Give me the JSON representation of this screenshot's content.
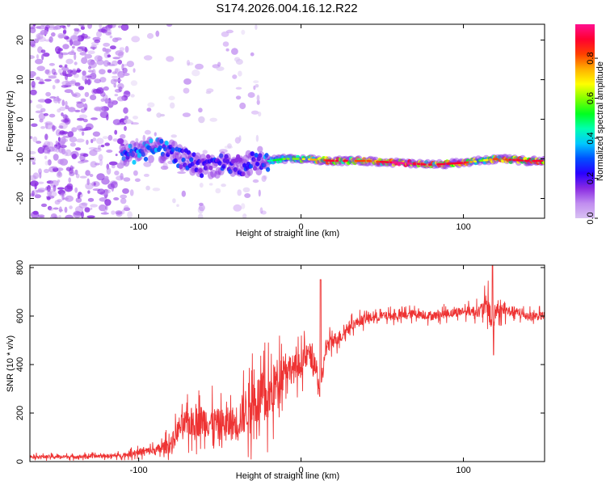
{
  "title": "S174.2026.004.16.12.R22",
  "chart_data": [
    {
      "type": "heatmap",
      "name": "spectrogram",
      "xlabel": "Height of straight line (km)",
      "ylabel": "Frequency (Hz)",
      "xlim": [
        -167,
        150
      ],
      "ylim": [
        -25,
        24
      ],
      "xticks": [
        -100,
        0,
        100
      ],
      "yticks": [
        -20,
        -10,
        0,
        10,
        20
      ],
      "colorbar": {
        "label": "Normalized spectral amplitude",
        "range": [
          0,
          0.97
        ],
        "ticks": [
          0.0,
          0.2,
          0.4,
          0.6,
          0.8
        ],
        "colormap": [
          "#d9c2f2",
          "#c08cf0",
          "#8a2be2",
          "#2a00ff",
          "#0050ff",
          "#00c8ff",
          "#00ffb0",
          "#00ff20",
          "#80ff00",
          "#ffff00",
          "#ffb000",
          "#ff4000",
          "#ff0030",
          "#ff1090"
        ]
      },
      "signal_track": {
        "height_km": [
          -110,
          -100,
          -90,
          -80,
          -70,
          -60,
          -50,
          -40,
          -30,
          -20,
          -10,
          0,
          20,
          40,
          60,
          80,
          100,
          110,
          120,
          140,
          150
        ],
        "frequency_hz": [
          -9.5,
          -8.0,
          -7.5,
          -8.5,
          -10.5,
          -12.0,
          -11.5,
          -12.0,
          -11.0,
          -10.5,
          -10.0,
          -10.0,
          -10.5,
          -10.5,
          -11.0,
          -11.5,
          -11.0,
          -10.5,
          -10.0,
          -10.5,
          -10.5
        ],
        "amplitude": [
          0.35,
          0.4,
          0.4,
          0.3,
          0.3,
          0.25,
          0.3,
          0.25,
          0.25,
          0.35,
          0.5,
          0.55,
          0.85,
          0.7,
          0.9,
          0.8,
          0.85,
          0.5,
          0.75,
          0.85,
          0.85
        ]
      },
      "noise_regions": [
        {
          "height_km": [
            -167,
            -107
          ],
          "frequency_hz": [
            -25,
            24
          ],
          "amplitude": 0.12
        },
        {
          "height_km": [
            -107,
            -20
          ],
          "frequency_hz": [
            -25,
            24
          ],
          "amplitude": 0.05
        }
      ]
    },
    {
      "type": "line",
      "name": "snr",
      "color": "#ee3333",
      "xlabel": "Height of straight line (km)",
      "ylabel": "SNR (10 * v/v)",
      "xlim": [
        -167,
        150
      ],
      "ylim": [
        0,
        810
      ],
      "xticks": [
        -100,
        0,
        100
      ],
      "yticks": [
        0,
        200,
        400,
        600,
        800
      ],
      "x": [
        -167,
        -140,
        -110,
        -100,
        -90,
        -80,
        -75,
        -70,
        -60,
        -50,
        -40,
        -30,
        -20,
        -15,
        -10,
        -5,
        0,
        5,
        10,
        12,
        15,
        20,
        25,
        30,
        40,
        50,
        60,
        70,
        80,
        90,
        100,
        110,
        115,
        118,
        120,
        130,
        140,
        150
      ],
      "y": [
        20,
        20,
        25,
        40,
        45,
        70,
        140,
        160,
        170,
        150,
        160,
        250,
        260,
        330,
        400,
        380,
        400,
        450,
        360,
        260,
        470,
        500,
        520,
        560,
        590,
        600,
        600,
        610,
        600,
        610,
        620,
        620,
        650,
        560,
        620,
        620,
        600,
        600
      ],
      "spike_amplitude": [
        12,
        12,
        14,
        25,
        30,
        60,
        80,
        100,
        110,
        110,
        120,
        180,
        180,
        160,
        110,
        100,
        90,
        80,
        70,
        60,
        60,
        50,
        45,
        35,
        35,
        30,
        30,
        30,
        30,
        30,
        30,
        40,
        80,
        130,
        50,
        35,
        30,
        30
      ],
      "annotations": [
        {
          "x": 12,
          "y": 750
        },
        {
          "x": 118,
          "y": 808
        },
        {
          "x": 118,
          "y": 440
        }
      ]
    }
  ]
}
